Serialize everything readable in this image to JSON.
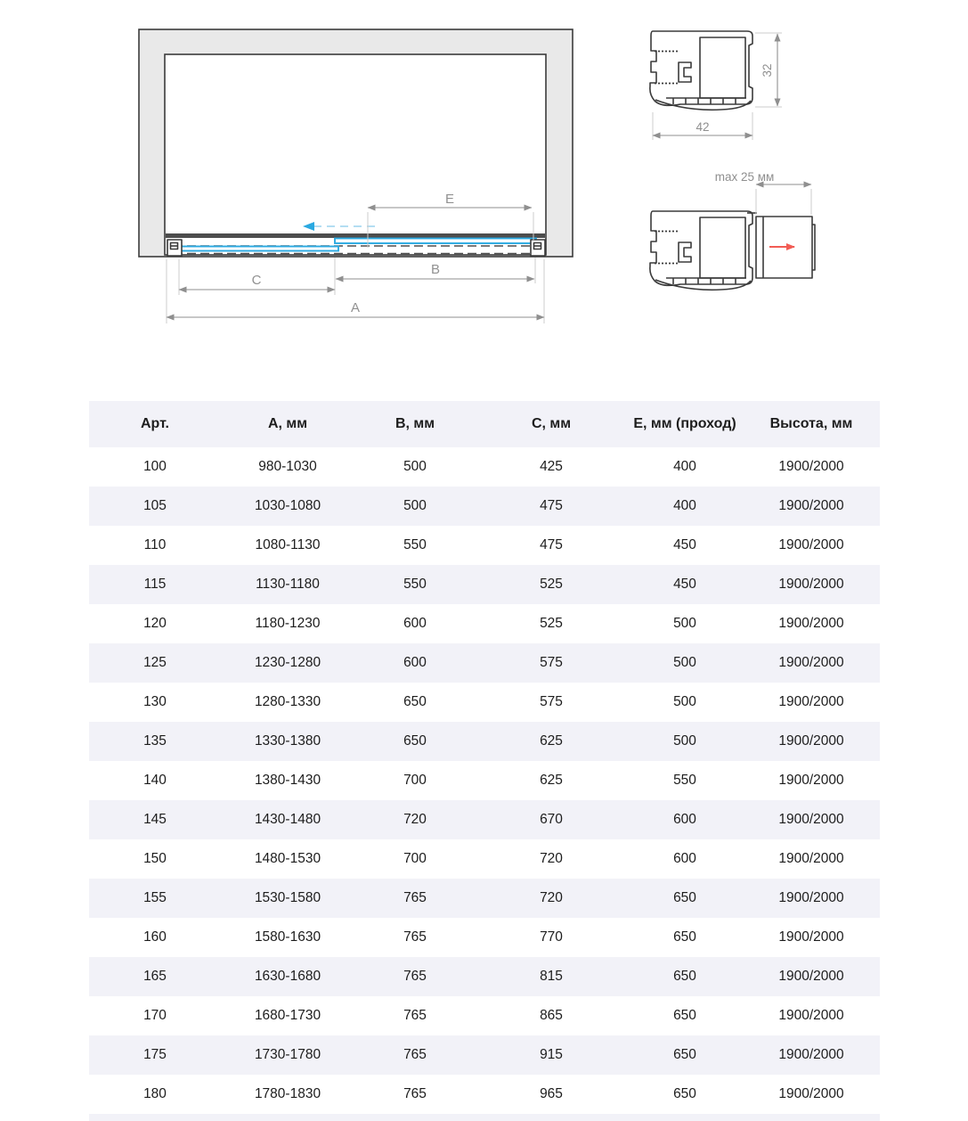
{
  "diagram": {
    "front_view": {
      "dim_a": "A",
      "dim_b": "B",
      "dim_c": "C",
      "dim_e": "E"
    },
    "top_profile": {
      "width": "42",
      "height": "32"
    },
    "bottom_profile": {
      "adjustment": "max 25 мм"
    }
  },
  "table": {
    "headers": [
      "Арт.",
      "А, мм",
      "В, мм",
      "С, мм",
      "Е, мм (проход)",
      "Высота, мм"
    ],
    "rows": [
      [
        "100",
        "980-1030",
        "500",
        "425",
        "400",
        "1900/2000"
      ],
      [
        "105",
        "1030-1080",
        "500",
        "475",
        "400",
        "1900/2000"
      ],
      [
        "110",
        "1080-1130",
        "550",
        "475",
        "450",
        "1900/2000"
      ],
      [
        "115",
        "1130-1180",
        "550",
        "525",
        "450",
        "1900/2000"
      ],
      [
        "120",
        "1180-1230",
        "600",
        "525",
        "500",
        "1900/2000"
      ],
      [
        "125",
        "1230-1280",
        "600",
        "575",
        "500",
        "1900/2000"
      ],
      [
        "130",
        "1280-1330",
        "650",
        "575",
        "500",
        "1900/2000"
      ],
      [
        "135",
        "1330-1380",
        "650",
        "625",
        "500",
        "1900/2000"
      ],
      [
        "140",
        "1380-1430",
        "700",
        "625",
        "550",
        "1900/2000"
      ],
      [
        "145",
        "1430-1480",
        "720",
        "670",
        "600",
        "1900/2000"
      ],
      [
        "150",
        "1480-1530",
        "700",
        "720",
        "600",
        "1900/2000"
      ],
      [
        "155",
        "1530-1580",
        "765",
        "720",
        "650",
        "1900/2000"
      ],
      [
        "160",
        "1580-1630",
        "765",
        "770",
        "650",
        "1900/2000"
      ],
      [
        "165",
        "1630-1680",
        "765",
        "815",
        "650",
        "1900/2000"
      ],
      [
        "170",
        "1680-1730",
        "765",
        "865",
        "650",
        "1900/2000"
      ],
      [
        "175",
        "1730-1780",
        "765",
        "915",
        "650",
        "1900/2000"
      ],
      [
        "180",
        "1780-1830",
        "765",
        "965",
        "650",
        "1900/2000"
      ]
    ]
  },
  "colors": {
    "accent_blue": "#2aa9e1",
    "arrow_red": "#f25c54",
    "table_stripe": "#f2f2f8",
    "wall_fill": "#e9e9e9",
    "line_dark": "#3b3b3b",
    "dim_gray": "#8f8f8f"
  }
}
